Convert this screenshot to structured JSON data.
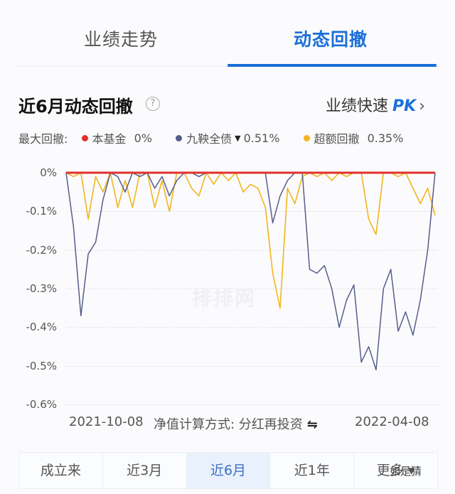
{
  "tabs": [
    {
      "label": "业绩走势",
      "active": false
    },
    {
      "label": "动态回撤",
      "active": true
    }
  ],
  "header": {
    "title": "近6月动态回撤",
    "help_icon": "question-circle-icon",
    "pk_prefix": "业绩快速",
    "pk_label": "PK",
    "pk_chevron": "›"
  },
  "legend": {
    "prefix": "最大回撤:",
    "items": [
      {
        "name": "本基金",
        "value": "0%",
        "color": "#e0312b"
      },
      {
        "name": "九鞅全债",
        "marker": "▼",
        "value": "0.51%",
        "color": "#565d8a"
      },
      {
        "name": "超额回撤",
        "value": "0.35%",
        "color": "#f2b51e"
      }
    ]
  },
  "watermark": "排排网",
  "footer": {
    "start_date": "2021-10-08",
    "calc_method": "净值计算方式: 分红再投资",
    "swap_icon": "⇋",
    "end_date": "2022-04-08"
  },
  "range_buttons": [
    {
      "label": "成立来",
      "active": false
    },
    {
      "label": "近3月",
      "active": false
    },
    {
      "label": "近6月",
      "active": true
    },
    {
      "label": "近1年",
      "active": false
    },
    {
      "label": "更多 ▾",
      "active": false
    }
  ],
  "corner_watermark": "如是猜",
  "chart_data": {
    "type": "line",
    "title": "近6月动态回撤",
    "xlabel": "",
    "ylabel": "",
    "x_range": [
      "2021-10-08",
      "2022-04-08"
    ],
    "ylim": [
      -0.6,
      0
    ],
    "yticks": [
      "0%",
      "-0.1%",
      "-0.2%",
      "-0.3%",
      "-0.4%",
      "-0.5%",
      "-0.6%"
    ],
    "grid": true,
    "legend_position": "top",
    "x_index": [
      0,
      2,
      4,
      6,
      8,
      10,
      12,
      14,
      16,
      18,
      20,
      22,
      24,
      26,
      28,
      30,
      32,
      34,
      36,
      38,
      40,
      42,
      44,
      46,
      48,
      50,
      52,
      54,
      56,
      58,
      60,
      62,
      64,
      66,
      68,
      70,
      72,
      74,
      76,
      78,
      80,
      82,
      84,
      86,
      88,
      90,
      92,
      94,
      96,
      98,
      100
    ],
    "series": [
      {
        "name": "本基金",
        "color": "#e0312b",
        "max_drawdown": 0,
        "values": [
          0,
          0,
          0,
          0,
          0,
          0,
          0,
          0,
          0,
          0,
          0,
          0,
          0,
          0,
          0,
          0,
          0,
          0,
          0,
          0,
          0,
          0,
          0,
          0,
          0,
          0,
          0,
          0,
          0,
          0,
          0,
          0,
          0,
          0,
          0,
          0,
          0,
          0,
          0,
          0,
          0,
          0,
          0,
          0,
          0,
          0,
          0,
          0,
          0,
          0,
          0
        ]
      },
      {
        "name": "九鞅全债",
        "color": "#565d8a",
        "max_drawdown": -0.51,
        "values": [
          0,
          -0.14,
          -0.37,
          -0.21,
          -0.18,
          -0.07,
          0,
          -0.01,
          -0.05,
          0,
          -0.01,
          0,
          -0.04,
          -0.01,
          -0.06,
          -0.02,
          0,
          0,
          -0.01,
          0,
          0,
          0,
          0,
          0,
          0,
          0,
          0,
          0,
          -0.13,
          -0.06,
          -0.02,
          0,
          0,
          -0.25,
          -0.26,
          -0.24,
          -0.3,
          -0.4,
          -0.33,
          -0.29,
          -0.49,
          -0.45,
          -0.51,
          -0.3,
          -0.25,
          -0.41,
          -0.36,
          -0.42,
          -0.33,
          -0.2,
          0
        ]
      },
      {
        "name": "超额回撤",
        "color": "#f2b51e",
        "max_drawdown": -0.35,
        "values": [
          0,
          -0.01,
          0,
          -0.12,
          -0.01,
          -0.05,
          0,
          -0.09,
          -0.02,
          -0.09,
          0,
          0,
          -0.09,
          -0.02,
          -0.1,
          0,
          0,
          -0.04,
          -0.06,
          0,
          -0.03,
          0,
          -0.02,
          0,
          -0.05,
          -0.03,
          -0.04,
          -0.09,
          -0.26,
          -0.35,
          -0.04,
          -0.08,
          -0.01,
          0,
          -0.01,
          0,
          -0.02,
          0,
          -0.01,
          0,
          0,
          -0.12,
          -0.16,
          0,
          0,
          -0.01,
          0,
          -0.04,
          -0.08,
          -0.04,
          -0.11
        ]
      }
    ]
  }
}
